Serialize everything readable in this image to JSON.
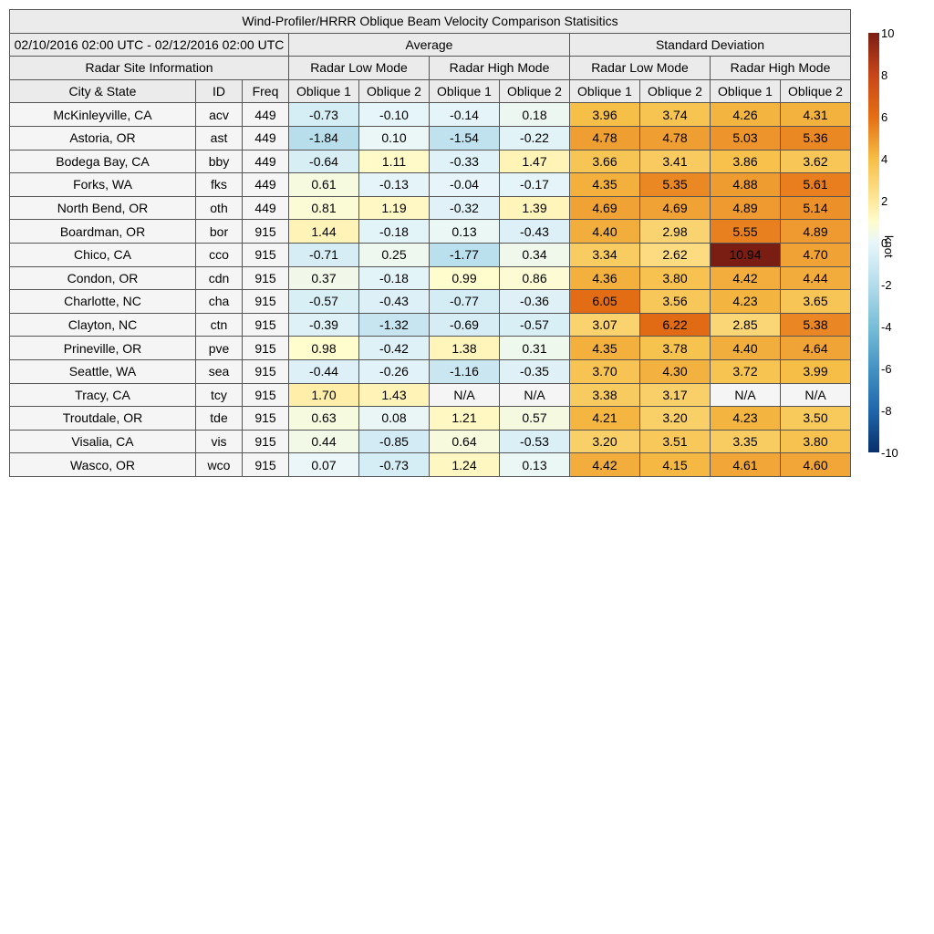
{
  "title": "Wind-Profiler/HRRR Oblique Beam Velocity Comparison Statisitics",
  "period": "02/10/2016 02:00 UTC - 02/12/2016 02:00 UTC",
  "groups": {
    "average": "Average",
    "std": "Standard Deviation",
    "site_info": "Radar Site Information"
  },
  "modes": [
    "Radar Low Mode",
    "Radar High Mode",
    "Radar Low Mode",
    "Radar High Mode"
  ],
  "columns": [
    "City & State",
    "ID",
    "Freq",
    "Oblique 1",
    "Oblique 2",
    "Oblique 1",
    "Oblique 2",
    "Oblique 1",
    "Oblique 2",
    "Oblique 1",
    "Oblique 2"
  ],
  "colorbar": {
    "label": "knot",
    "ticks": [
      "10",
      "8",
      "6",
      "4",
      "2",
      "0",
      "-2",
      "-4",
      "-6",
      "-8",
      "-10"
    ],
    "min": -10,
    "max": 10
  },
  "chart_data": {
    "type": "table",
    "title": "Wind-Profiler/HRRR Oblique Beam Velocity Comparison Statisitics",
    "period": "02/10/2016 02:00 UTC - 02/12/2016 02:00 UTC",
    "units": "knot",
    "na_text": "N/A",
    "value_columns": [
      "Average Radar Low Mode Oblique 1",
      "Average Radar Low Mode Oblique 2",
      "Average Radar High Mode Oblique 1",
      "Average Radar High Mode Oblique 2",
      "Standard Deviation Radar Low Mode Oblique 1",
      "Standard Deviation Radar Low Mode Oblique 2",
      "Standard Deviation Radar High Mode Oblique 1",
      "Standard Deviation Radar High Mode Oblique 2"
    ],
    "rows": [
      {
        "city": "McKinleyville, CA",
        "id": "acv",
        "freq": "449",
        "values": [
          "-0.73",
          "-0.10",
          "-0.14",
          "0.18",
          "3.96",
          "3.74",
          "4.26",
          "4.31"
        ]
      },
      {
        "city": "Astoria, OR",
        "id": "ast",
        "freq": "449",
        "values": [
          "-1.84",
          "0.10",
          "-1.54",
          "-0.22",
          "4.78",
          "4.78",
          "5.03",
          "5.36"
        ]
      },
      {
        "city": "Bodega Bay, CA",
        "id": "bby",
        "freq": "449",
        "values": [
          "-0.64",
          "1.11",
          "-0.33",
          "1.47",
          "3.66",
          "3.41",
          "3.86",
          "3.62"
        ]
      },
      {
        "city": "Forks, WA",
        "id": "fks",
        "freq": "449",
        "values": [
          "0.61",
          "-0.13",
          "-0.04",
          "-0.17",
          "4.35",
          "5.35",
          "4.88",
          "5.61"
        ]
      },
      {
        "city": "North Bend, OR",
        "id": "oth",
        "freq": "449",
        "values": [
          "0.81",
          "1.19",
          "-0.32",
          "1.39",
          "4.69",
          "4.69",
          "4.89",
          "5.14"
        ]
      },
      {
        "city": "Boardman, OR",
        "id": "bor",
        "freq": "915",
        "values": [
          "1.44",
          "-0.18",
          "0.13",
          "-0.43",
          "4.40",
          "2.98",
          "5.55",
          "4.89"
        ]
      },
      {
        "city": "Chico, CA",
        "id": "cco",
        "freq": "915",
        "values": [
          "-0.71",
          "0.25",
          "-1.77",
          "0.34",
          "3.34",
          "2.62",
          "10.94",
          "4.70"
        ]
      },
      {
        "city": "Condon, OR",
        "id": "cdn",
        "freq": "915",
        "values": [
          "0.37",
          "-0.18",
          "0.99",
          "0.86",
          "4.36",
          "3.80",
          "4.42",
          "4.44"
        ]
      },
      {
        "city": "Charlotte, NC",
        "id": "cha",
        "freq": "915",
        "values": [
          "-0.57",
          "-0.43",
          "-0.77",
          "-0.36",
          "6.05",
          "3.56",
          "4.23",
          "3.65"
        ]
      },
      {
        "city": "Clayton, NC",
        "id": "ctn",
        "freq": "915",
        "values": [
          "-0.39",
          "-1.32",
          "-0.69",
          "-0.57",
          "3.07",
          "6.22",
          "2.85",
          "5.38"
        ]
      },
      {
        "city": "Prineville, OR",
        "id": "pve",
        "freq": "915",
        "values": [
          "0.98",
          "-0.42",
          "1.38",
          "0.31",
          "4.35",
          "3.78",
          "4.40",
          "4.64"
        ]
      },
      {
        "city": "Seattle, WA",
        "id": "sea",
        "freq": "915",
        "values": [
          "-0.44",
          "-0.26",
          "-1.16",
          "-0.35",
          "3.70",
          "4.30",
          "3.72",
          "3.99"
        ]
      },
      {
        "city": "Tracy, CA",
        "id": "tcy",
        "freq": "915",
        "values": [
          "1.70",
          "1.43",
          "N/A",
          "N/A",
          "3.38",
          "3.17",
          "N/A",
          "N/A"
        ]
      },
      {
        "city": "Troutdale, OR",
        "id": "tde",
        "freq": "915",
        "values": [
          "0.63",
          "0.08",
          "1.21",
          "0.57",
          "4.21",
          "3.20",
          "4.23",
          "3.50"
        ]
      },
      {
        "city": "Visalia, CA",
        "id": "vis",
        "freq": "915",
        "values": [
          "0.44",
          "-0.85",
          "0.64",
          "-0.53",
          "3.20",
          "3.51",
          "3.35",
          "3.80"
        ]
      },
      {
        "city": "Wasco, OR",
        "id": "wco",
        "freq": "915",
        "values": [
          "0.07",
          "-0.73",
          "1.24",
          "0.13",
          "4.42",
          "4.15",
          "4.61",
          "4.60"
        ]
      }
    ]
  }
}
